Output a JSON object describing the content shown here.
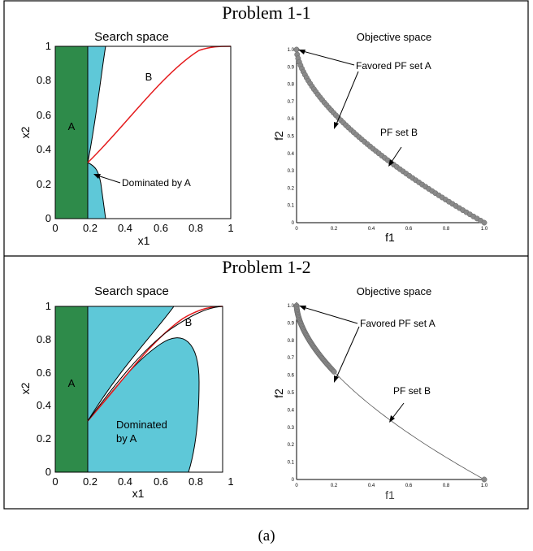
{
  "figure": {
    "caption": "(a)",
    "panels": [
      {
        "title": "Problem 1-1",
        "search": {
          "title": "Search space",
          "xlabel": "x1",
          "ylabel": "x2",
          "xticks": [
            "0",
            "0.2",
            "0.4",
            "0.6",
            "0.8",
            "1"
          ],
          "yticks": [
            "0",
            "0.2",
            "0.4",
            "0.6",
            "0.8",
            "1"
          ],
          "label_A": "A",
          "label_B": "B",
          "annotation": "Dominated by A"
        },
        "objective": {
          "title": "Objective space",
          "xlabel": "f1",
          "ylabel": "f2",
          "xticks": [
            "0",
            "0.2",
            "0.4",
            "0.6",
            "0.8",
            "1.0"
          ],
          "yticks": [
            "0",
            "0.1",
            "0.2",
            "0.3",
            "0.4",
            "0.5",
            "0.6",
            "0.7",
            "0.8",
            "0.9",
            "1.0"
          ],
          "annotation_A": "Favored PF set A",
          "annotation_B": "PF set B"
        }
      },
      {
        "title": "Problem 1-2",
        "search": {
          "title": "Search space",
          "xlabel": "x1",
          "ylabel": "x2",
          "xticks": [
            "0",
            "0.2",
            "0.4",
            "0.6",
            "0.8",
            "1"
          ],
          "yticks": [
            "0",
            "0.2",
            "0.4",
            "0.6",
            "0.8",
            "1"
          ],
          "label_A": "A",
          "label_B": "B",
          "annotation": "Dominated\nby A"
        },
        "objective": {
          "title": "Objective space",
          "xlabel": "f1",
          "ylabel": "f2",
          "xticks": [
            "0",
            "0.2",
            "0.4",
            "0.6",
            "0.8",
            "1.0"
          ],
          "yticks": [
            "0",
            "0.1",
            "0.2",
            "0.3",
            "0.4",
            "0.5",
            "0.6",
            "0.7",
            "0.8",
            "0.9",
            "1.0"
          ],
          "annotation_A": "Favored PF set A",
          "annotation_B": "PF set B"
        }
      }
    ]
  },
  "colors": {
    "region_A": "#2e8b4a",
    "dominated": "#5ec8d8",
    "pf_curve": "#e41a1c",
    "points": "#8a8a8a"
  },
  "chart_data": [
    {
      "type": "area",
      "title": "Search space",
      "xlabel": "x1",
      "ylabel": "x2",
      "xlim": [
        0,
        1
      ],
      "ylim": [
        0,
        1
      ],
      "region_A": {
        "x": [
          0,
          0.2
        ],
        "y": [
          0,
          1
        ]
      },
      "curve_B": {
        "x": [
          0.2,
          0.4,
          0.6,
          0.8,
          1.0
        ],
        "y": [
          0.32,
          0.58,
          0.8,
          0.95,
          1.0
        ]
      },
      "dominated_x_range": [
        0.2,
        0.28
      ]
    },
    {
      "type": "scatter",
      "title": "Objective space",
      "xlabel": "f1",
      "ylabel": "f2",
      "xlim": [
        0,
        1
      ],
      "ylim": [
        0,
        1
      ],
      "set_A": {
        "f1": [
          0,
          0.05,
          0.1,
          0.15,
          0.2
        ],
        "f2": [
          1.0,
          0.78,
          0.66,
          0.6,
          0.56
        ]
      },
      "set_B": {
        "f1": [
          0.2,
          0.4,
          0.6,
          0.8,
          1.0
        ],
        "f2": [
          0.56,
          0.37,
          0.22,
          0.1,
          0.0
        ]
      }
    },
    {
      "type": "area",
      "title": "Search space",
      "xlabel": "x1",
      "ylabel": "x2",
      "xlim": [
        0,
        1
      ],
      "ylim": [
        0,
        1
      ],
      "region_A": {
        "x": [
          0,
          0.2
        ],
        "y": [
          0,
          1
        ]
      },
      "curve_B": {
        "x": [
          0.2,
          0.4,
          0.6,
          0.8,
          1.0
        ],
        "y": [
          0.32,
          0.57,
          0.78,
          0.93,
          1.0
        ]
      },
      "dominated_x_range": [
        0.2,
        0.8
      ]
    },
    {
      "type": "scatter",
      "title": "Objective space",
      "xlabel": "f1",
      "ylabel": "f2",
      "xlim": [
        0,
        1
      ],
      "ylim": [
        0,
        1
      ],
      "set_A": {
        "f1": [
          0,
          0.05,
          0.1,
          0.15,
          0.2
        ],
        "f2": [
          1.0,
          0.8,
          0.7,
          0.62,
          0.56
        ]
      },
      "set_B": {
        "f1": [
          0.2,
          0.4,
          0.6,
          0.8,
          1.0
        ],
        "f2": [
          0.56,
          0.39,
          0.25,
          0.12,
          0.0
        ]
      }
    }
  ]
}
